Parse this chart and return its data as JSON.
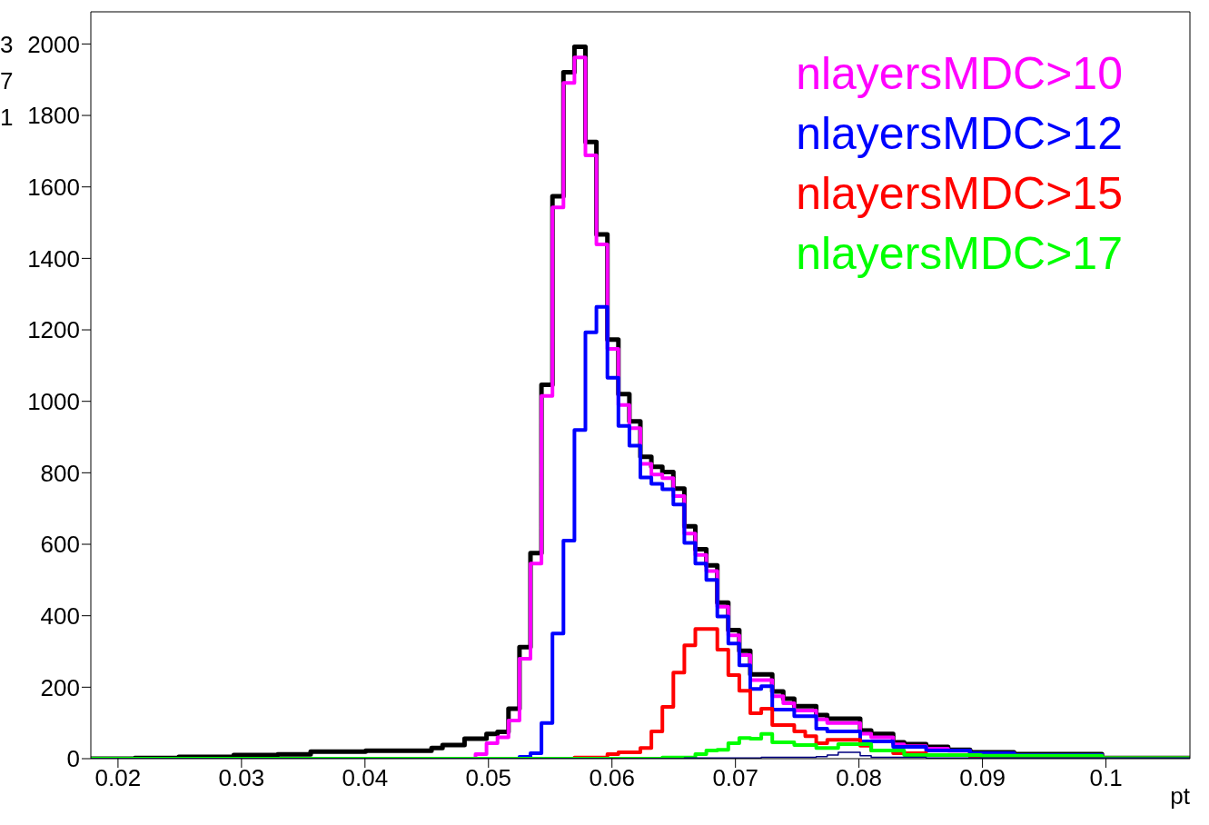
{
  "chart_data": {
    "type": "histogram",
    "xlabel": "pt",
    "legend": "top right",
    "xlim": [
      0.0178,
      0.1068
    ],
    "ylim": [
      0,
      2090
    ],
    "xticks": [
      0.02,
      0.03,
      0.04,
      0.05,
      0.06,
      0.07,
      0.08,
      0.09,
      0.1
    ],
    "yticks": [
      0,
      200,
      400,
      600,
      800,
      1000,
      1200,
      1400,
      1600,
      1800,
      2000
    ],
    "annotations": [
      "3",
      "7",
      "1"
    ],
    "bins": [
      0.0178,
      0.01869,
      0.01958,
      0.02047,
      0.02136,
      0.02225,
      0.02314,
      0.02403,
      0.02492,
      0.02581,
      0.0267,
      0.02759,
      0.02848,
      0.02937,
      0.03026,
      0.03115,
      0.03204,
      0.03293,
      0.03382,
      0.03471,
      0.0356,
      0.03649,
      0.03738,
      0.03827,
      0.03916,
      0.04005,
      0.04094,
      0.04183,
      0.04272,
      0.04361,
      0.0445,
      0.04539,
      0.04628,
      0.04717,
      0.04806,
      0.04895,
      0.04984,
      0.05073,
      0.05162,
      0.05251,
      0.0534,
      0.05429,
      0.05518,
      0.05607,
      0.05696,
      0.05785,
      0.05874,
      0.05963,
      0.06052,
      0.06141,
      0.0623,
      0.06319,
      0.06408,
      0.06497,
      0.06586,
      0.06675,
      0.06764,
      0.06853,
      0.06942,
      0.07031,
      0.0712,
      0.07209,
      0.07298,
      0.07387,
      0.07476,
      0.07565,
      0.07654,
      0.07743,
      0.07832,
      0.07921,
      0.0801,
      0.08099,
      0.08188,
      0.08277,
      0.08366,
      0.08455,
      0.08544,
      0.08633,
      0.08722,
      0.08811,
      0.089,
      0.08989,
      0.09078,
      0.09167,
      0.09256,
      0.09345,
      0.09434,
      0.09523,
      0.09612,
      0.09701,
      0.0979,
      0.09879,
      0.09968,
      0.10057,
      0.10146,
      0.10235,
      0.10324,
      0.10413,
      0.10502,
      0.10591,
      0.1068
    ],
    "series": [
      {
        "color": "#000000",
        "values": [
          0,
          0,
          0,
          0,
          2,
          2,
          2,
          2,
          5,
          5,
          5,
          5,
          5,
          10,
          10,
          10,
          10,
          12,
          12,
          12,
          20,
          20,
          20,
          20,
          20,
          22,
          22,
          22,
          22,
          22,
          22,
          30,
          38,
          38,
          56,
          56,
          69,
          75,
          140,
          312,
          575,
          1046,
          1574,
          1921,
          1992,
          1726,
          1467,
          1173,
          1020,
          944,
          845,
          817,
          802,
          756,
          650,
          586,
          541,
          437,
          360,
          302,
          236,
          236,
          188,
          168,
          147,
          147,
          122,
          112,
          112,
          112,
          79,
          69,
          69,
          46,
          41,
          41,
          33,
          33,
          25,
          25,
          18,
          18,
          18,
          18,
          13,
          13,
          13,
          13,
          13,
          13,
          13,
          13,
          2,
          2,
          2,
          2,
          2,
          2,
          2,
          2
        ]
      },
      {
        "name": "nlayersMDC>10",
        "color": "#ff00ff",
        "values": [
          0,
          0,
          0,
          0,
          0,
          0,
          0,
          0,
          0,
          0,
          0,
          0,
          0,
          0,
          0,
          0,
          0,
          0,
          0,
          0,
          0,
          0,
          0,
          0,
          0,
          0,
          0,
          0,
          0,
          0,
          0,
          0,
          0,
          0,
          0,
          13,
          43,
          60,
          107,
          280,
          546,
          1015,
          1543,
          1891,
          1962,
          1688,
          1439,
          1147,
          990,
          925,
          825,
          795,
          785,
          735,
          630,
          570,
          525,
          425,
          345,
          290,
          220,
          220,
          175,
          155,
          135,
          135,
          110,
          100,
          100,
          100,
          70,
          60,
          60,
          40,
          35,
          35,
          28,
          28,
          22,
          22,
          15,
          15,
          15,
          15,
          10,
          10,
          10,
          10,
          10,
          10,
          10,
          10,
          2,
          2,
          2,
          2,
          2,
          2,
          2,
          2
        ]
      },
      {
        "name": "nlayersMDC>12",
        "color": "#0000ff",
        "values": [
          0,
          0,
          0,
          0,
          0,
          0,
          0,
          0,
          0,
          0,
          0,
          0,
          0,
          0,
          0,
          0,
          0,
          0,
          0,
          0,
          0,
          0,
          0,
          0,
          0,
          0,
          0,
          0,
          0,
          0,
          0,
          0,
          0,
          0,
          0,
          0,
          0,
          0,
          0,
          5,
          15,
          100,
          350,
          610,
          920,
          1193,
          1264,
          1066,
          931,
          876,
          787,
          769,
          754,
          711,
          604,
          546,
          500,
          398,
          322,
          261,
          195,
          203,
          137,
          137,
          119,
          119,
          84,
          76,
          76,
          76,
          48,
          48,
          48,
          33,
          33,
          33,
          23,
          23,
          23,
          23,
          15,
          15,
          15,
          15,
          10,
          10,
          10,
          10,
          10,
          10,
          10,
          10,
          2,
          2,
          2,
          2,
          2,
          2,
          2,
          2
        ]
      },
      {
        "name": "nlayersMDC>15",
        "color": "#ff0000",
        "values": [
          0,
          0,
          0,
          0,
          0,
          0,
          0,
          0,
          0,
          0,
          0,
          0,
          0,
          0,
          0,
          0,
          0,
          0,
          0,
          0,
          0,
          0,
          0,
          0,
          0,
          0,
          0,
          0,
          0,
          0,
          0,
          0,
          0,
          0,
          0,
          0,
          0,
          0,
          0,
          0,
          0,
          0,
          0,
          0,
          3,
          3,
          3,
          13,
          18,
          18,
          30,
          76,
          145,
          241,
          317,
          363,
          363,
          305,
          234,
          190,
          127,
          140,
          94,
          94,
          76,
          63,
          43,
          53,
          53,
          53,
          36,
          23,
          23,
          15,
          15,
          15,
          10,
          10,
          10,
          10,
          5,
          5,
          5,
          5,
          5,
          5,
          5,
          5,
          5,
          5,
          5,
          5,
          2,
          2,
          2,
          2,
          2,
          2,
          2,
          2
        ]
      },
      {
        "name": "nlayersMDC>17",
        "color": "#00ff00",
        "values": [
          0,
          0,
          0,
          0,
          0,
          0,
          0,
          0,
          0,
          0,
          0,
          0,
          0,
          0,
          0,
          0,
          0,
          0,
          0,
          0,
          0,
          0,
          0,
          0,
          0,
          0,
          0,
          0,
          0,
          0,
          0,
          0,
          0,
          0,
          0,
          0,
          0,
          0,
          0,
          0,
          0,
          0,
          0,
          0,
          0,
          0,
          0,
          0,
          0,
          0,
          0,
          0,
          3,
          3,
          3,
          13,
          23,
          25,
          43,
          58,
          56,
          69,
          46,
          46,
          38,
          38,
          30,
          30,
          41,
          41,
          41,
          23,
          23,
          23,
          10,
          10,
          10,
          10,
          10,
          10,
          10,
          8,
          8,
          8,
          8,
          8,
          8,
          8,
          8,
          8,
          8,
          8,
          2,
          2,
          2,
          2,
          2,
          2,
          2,
          2
        ]
      },
      {
        "color": "#000080",
        "values": [
          0,
          0,
          0,
          0,
          0,
          0,
          0,
          0,
          0,
          0,
          0,
          0,
          0,
          0,
          0,
          0,
          0,
          0,
          0,
          0,
          0,
          0,
          0,
          0,
          0,
          0,
          0,
          0,
          0,
          0,
          0,
          0,
          0,
          0,
          0,
          0,
          0,
          0,
          0,
          0,
          0,
          0,
          0,
          0,
          0,
          0,
          0,
          0,
          0,
          0,
          0,
          0,
          0,
          0,
          2,
          2,
          2,
          2,
          2,
          2,
          2,
          4,
          4,
          4,
          4,
          4,
          6,
          10,
          18,
          18,
          8,
          4,
          4,
          4,
          4,
          4,
          2,
          2,
          2,
          2,
          2,
          2,
          2,
          2,
          2,
          2,
          2,
          2,
          2,
          2,
          2,
          2,
          2,
          2,
          2,
          2,
          2,
          2,
          2,
          2
        ]
      }
    ]
  }
}
